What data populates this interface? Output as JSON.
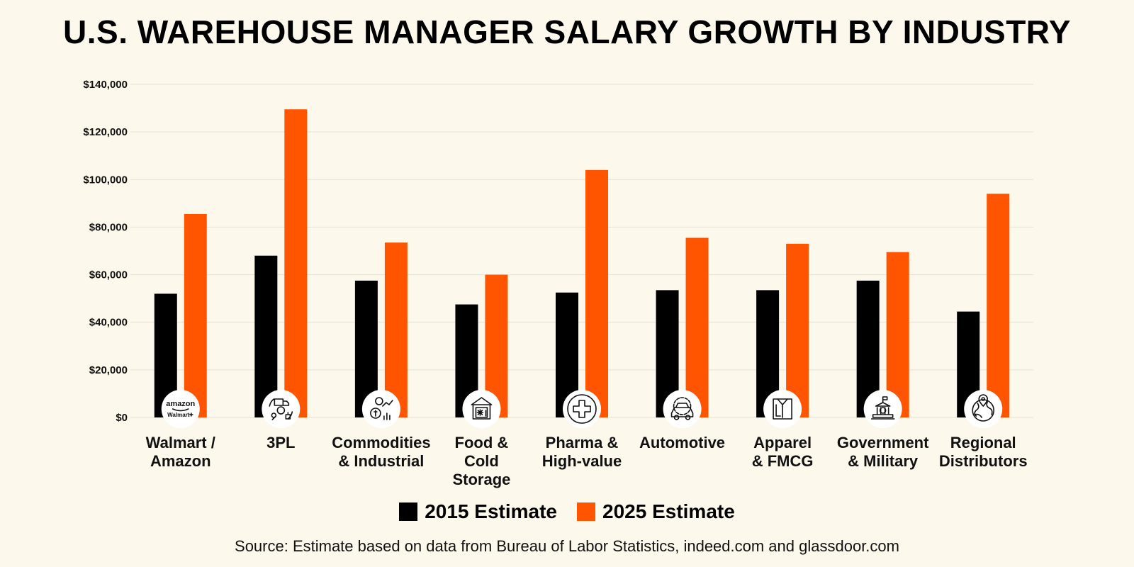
{
  "chart_data": {
    "type": "bar",
    "title": "U.S. WAREHOUSE MANAGER SALARY GROWTH BY INDUSTRY",
    "xlabel": "",
    "ylabel": "",
    "ylim": [
      0,
      140000
    ],
    "yticks": [
      0,
      20000,
      40000,
      60000,
      80000,
      100000,
      120000,
      140000
    ],
    "ytick_labels": [
      "$0",
      "$20,000",
      "$40,000",
      "$60,000",
      "$80,000",
      "$100,000",
      "$120,000",
      "$140,000"
    ],
    "grid": true,
    "categories": [
      [
        "Walmart /",
        "Amazon"
      ],
      [
        "3PL"
      ],
      [
        "Commodities",
        "& Industrial"
      ],
      [
        "Food &",
        "Cold",
        "Storage"
      ],
      [
        "Pharma &",
        "High-value"
      ],
      [
        "Automotive"
      ],
      [
        "Apparel",
        "& FMCG"
      ],
      [
        "Government",
        "& Military"
      ],
      [
        "Regional",
        "Distributors"
      ]
    ],
    "category_icons": [
      "amazon-walmart-logo-icon",
      "logistics-truck-icon",
      "commodities-money-icon",
      "cold-storage-icon",
      "medical-cross-icon",
      "car-gear-icon",
      "shirt-icon",
      "government-building-icon",
      "globe-location-icon"
    ],
    "logo_text": [
      "amazon",
      "Walmart"
    ],
    "series": [
      {
        "name": "2015 Estimate",
        "color": "#000000",
        "values": [
          52000,
          68000,
          57500,
          47500,
          52500,
          53500,
          53500,
          57500,
          44500
        ]
      },
      {
        "name": "2025 Estimate",
        "color": "#ff5500",
        "values": [
          85500,
          129500,
          73500,
          60000,
          104000,
          75500,
          73000,
          69500,
          94000
        ]
      }
    ],
    "legend_position": "bottom"
  },
  "source": "Source: Estimate based on data from Bureau of Labor Statistics, indeed.com and glassdoor.com"
}
